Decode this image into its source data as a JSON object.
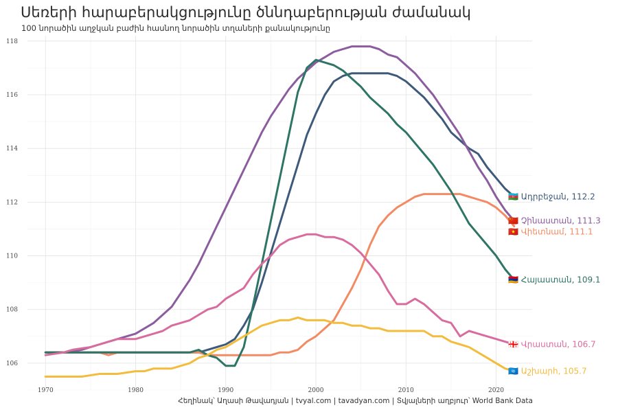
{
  "chart_data": {
    "type": "line",
    "title": "Սեռերի հարաբերակցությունը ծննդաբերության ժամանակ",
    "subtitle": "100 նորածին աղջկան բաժին հասնող նորածին տղաների քանակությունը",
    "caption": "Հեղինակ՝ Աղասի Թավադյան  |  tvyal.com  |  tavadyan.com    |   Տվյալների աղբյուր՝ World Bank Data",
    "xlim": [
      1968,
      2024
    ],
    "ylim": [
      105,
      118.2
    ],
    "x_ticks": [
      1970,
      1980,
      1990,
      2000,
      2010,
      2020
    ],
    "y_ticks": [
      106,
      108,
      110,
      112,
      114,
      116,
      118
    ],
    "grid": true,
    "legend": "direct-labels-right",
    "series": [
      {
        "name": "Ադրբեջան",
        "end_label": "Ադրբեջան, 112.2",
        "flag": "🇦🇿",
        "color": "#3d5a7a",
        "x": [
          1970,
          1975,
          1980,
          1985,
          1987,
          1989,
          1990,
          1991,
          1992,
          1993,
          1994,
          1995,
          1996,
          1997,
          1998,
          1999,
          2000,
          2001,
          2002,
          2003,
          2004,
          2005,
          2006,
          2007,
          2008,
          2009,
          2010,
          2011,
          2012,
          2013,
          2014,
          2015,
          2016,
          2017,
          2018,
          2019,
          2020,
          2021,
          2022
        ],
        "y": [
          106.4,
          106.4,
          106.4,
          106.4,
          106.4,
          106.6,
          106.7,
          106.9,
          107.4,
          108.0,
          109.0,
          110.1,
          111.2,
          112.3,
          113.4,
          114.5,
          115.3,
          116.0,
          116.5,
          116.7,
          116.8,
          116.8,
          116.8,
          116.8,
          116.8,
          116.7,
          116.5,
          116.2,
          115.9,
          115.5,
          115.1,
          114.6,
          114.3,
          114.0,
          113.8,
          113.3,
          112.9,
          112.5,
          112.2
        ]
      },
      {
        "name": "Չինաստան",
        "end_label": "Չինաստան, 111.3",
        "flag": "🇨🇳",
        "color": "#8b5c9e",
        "x": [
          1970,
          1972,
          1974,
          1976,
          1978,
          1980,
          1982,
          1984,
          1986,
          1987,
          1988,
          1989,
          1990,
          1991,
          1992,
          1993,
          1994,
          1995,
          1996,
          1997,
          1998,
          1999,
          2000,
          2001,
          2002,
          2003,
          2004,
          2005,
          2006,
          2007,
          2008,
          2009,
          2010,
          2011,
          2012,
          2013,
          2014,
          2015,
          2016,
          2017,
          2018,
          2019,
          2020,
          2021,
          2022
        ],
        "y": [
          106.4,
          106.4,
          106.5,
          106.7,
          106.9,
          107.1,
          107.5,
          108.1,
          109.1,
          109.7,
          110.4,
          111.1,
          111.8,
          112.5,
          113.2,
          113.9,
          114.6,
          115.2,
          115.7,
          116.2,
          116.6,
          116.9,
          117.2,
          117.4,
          117.6,
          117.7,
          117.8,
          117.8,
          117.8,
          117.7,
          117.5,
          117.4,
          117.1,
          116.8,
          116.4,
          116.0,
          115.5,
          115.0,
          114.5,
          113.9,
          113.3,
          112.8,
          112.2,
          111.7,
          111.3
        ]
      },
      {
        "name": "Վիետնամ",
        "end_label": "Վիետնամ, 111.1",
        "flag": "🇻🇳",
        "color": "#f28b63",
        "x": [
          1970,
          1975,
          1976,
          1977,
          1978,
          1980,
          1985,
          1986,
          1987,
          1988,
          1990,
          1995,
          1996,
          1997,
          1998,
          1999,
          2000,
          2001,
          2002,
          2003,
          2004,
          2005,
          2006,
          2007,
          2008,
          2009,
          2010,
          2011,
          2012,
          2013,
          2014,
          2015,
          2016,
          2017,
          2018,
          2019,
          2020,
          2021,
          2022
        ],
        "y": [
          106.4,
          106.4,
          106.4,
          106.3,
          106.4,
          106.4,
          106.4,
          106.4,
          106.4,
          106.3,
          106.3,
          106.3,
          106.4,
          106.4,
          106.5,
          106.8,
          107.0,
          107.3,
          107.6,
          108.2,
          108.8,
          109.5,
          110.4,
          111.1,
          111.5,
          111.8,
          112.0,
          112.2,
          112.3,
          112.3,
          112.3,
          112.3,
          112.3,
          112.2,
          112.1,
          112.0,
          111.8,
          111.5,
          111.1
        ]
      },
      {
        "name": "Հայաստան",
        "end_label": "Հայաստան, 109.1",
        "flag": "🇦🇲",
        "color": "#2e7566",
        "x": [
          1970,
          1975,
          1980,
          1985,
          1986,
          1987,
          1988,
          1989,
          1990,
          1991,
          1992,
          1993,
          1994,
          1995,
          1996,
          1997,
          1998,
          1999,
          2000,
          2001,
          2002,
          2003,
          2004,
          2005,
          2006,
          2007,
          2008,
          2009,
          2010,
          2011,
          2012,
          2013,
          2014,
          2015,
          2016,
          2017,
          2018,
          2019,
          2020,
          2021,
          2022
        ],
        "y": [
          106.4,
          106.4,
          106.4,
          106.4,
          106.4,
          106.5,
          106.3,
          106.2,
          105.9,
          105.9,
          106.6,
          108.1,
          109.7,
          111.3,
          112.9,
          114.5,
          116.1,
          117.0,
          117.3,
          117.2,
          117.1,
          116.9,
          116.6,
          116.3,
          115.9,
          115.6,
          115.3,
          114.9,
          114.6,
          114.2,
          113.8,
          113.4,
          112.9,
          112.4,
          111.8,
          111.2,
          110.8,
          110.4,
          110.0,
          109.5,
          109.1
        ]
      },
      {
        "name": "Վրաստան",
        "end_label": "Վրաստան, 106.7",
        "flag": "🇬🇪",
        "color": "#d96c9e",
        "x": [
          1970,
          1972,
          1973,
          1975,
          1978,
          1980,
          1982,
          1983,
          1984,
          1986,
          1987,
          1988,
          1989,
          1990,
          1991,
          1992,
          1993,
          1994,
          1995,
          1996,
          1997,
          1998,
          1999,
          2000,
          2001,
          2002,
          2003,
          2004,
          2005,
          2006,
          2007,
          2008,
          2009,
          2010,
          2011,
          2012,
          2013,
          2014,
          2015,
          2016,
          2017,
          2018,
          2020,
          2022
        ],
        "y": [
          106.3,
          106.4,
          106.5,
          106.6,
          106.9,
          106.9,
          107.1,
          107.2,
          107.4,
          107.6,
          107.8,
          108.0,
          108.1,
          108.4,
          108.6,
          108.8,
          109.3,
          109.7,
          110.0,
          110.4,
          110.6,
          110.7,
          110.8,
          110.8,
          110.7,
          110.7,
          110.6,
          110.4,
          110.1,
          109.7,
          109.3,
          108.7,
          108.2,
          108.2,
          108.4,
          108.2,
          107.9,
          107.6,
          107.5,
          107.0,
          107.2,
          107.1,
          106.9,
          106.7
        ]
      },
      {
        "name": "Աշխարհ",
        "end_label": "Աշխարհ, 105.7",
        "flag": "🇺🇳",
        "color": "#f3bc3d",
        "x": [
          1970,
          1971,
          1972,
          1974,
          1976,
          1978,
          1980,
          1981,
          1982,
          1983,
          1984,
          1985,
          1986,
          1987,
          1988,
          1989,
          1990,
          1991,
          1992,
          1993,
          1994,
          1995,
          1996,
          1997,
          1998,
          1999,
          2000,
          2001,
          2002,
          2003,
          2004,
          2005,
          2006,
          2007,
          2008,
          2009,
          2010,
          2011,
          2012,
          2013,
          2014,
          2015,
          2016,
          2017,
          2018,
          2019,
          2020,
          2021,
          2022
        ],
        "y": [
          105.5,
          105.5,
          105.5,
          105.5,
          105.6,
          105.6,
          105.7,
          105.7,
          105.8,
          105.8,
          105.8,
          105.9,
          106.0,
          106.2,
          106.3,
          106.5,
          106.6,
          106.8,
          107.0,
          107.2,
          107.4,
          107.5,
          107.6,
          107.6,
          107.7,
          107.6,
          107.6,
          107.6,
          107.5,
          107.5,
          107.4,
          107.4,
          107.3,
          107.3,
          107.2,
          107.2,
          107.2,
          107.2,
          107.2,
          107.0,
          107.0,
          106.8,
          106.7,
          106.6,
          106.4,
          106.2,
          106.0,
          105.8,
          105.7
        ]
      }
    ]
  }
}
